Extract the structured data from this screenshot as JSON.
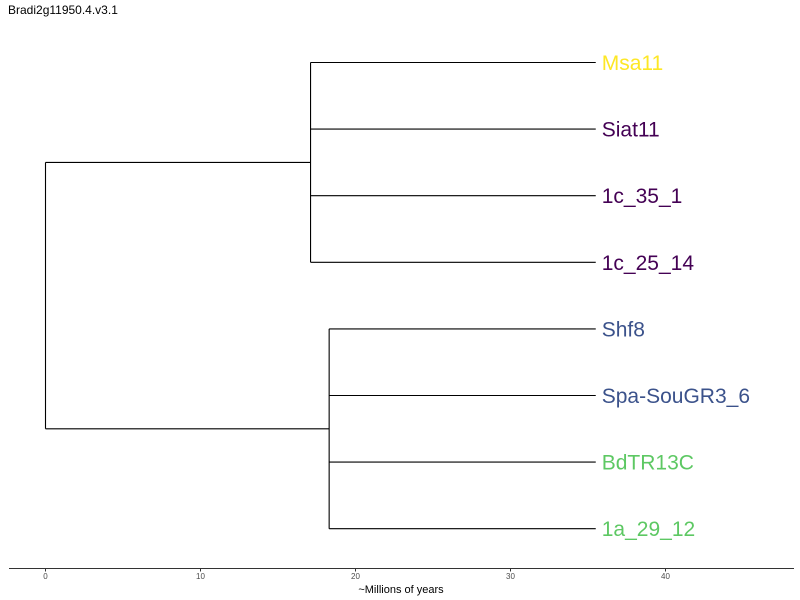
{
  "title": "Bradi2g11950.4.v3.1",
  "axis": {
    "label": "~Millions of years",
    "ticks": [
      0,
      10,
      20,
      30,
      40
    ],
    "range": [
      -2.3,
      48
    ]
  },
  "tree": {
    "tips": [
      {
        "label": "Msa11",
        "color": "#FDE725",
        "depth": 35.5
      },
      {
        "label": "Siat11",
        "color": "#440154",
        "depth": 35.5
      },
      {
        "label": "1c_35_1",
        "color": "#440154",
        "depth": 35.5
      },
      {
        "label": "1c_25_14",
        "color": "#440154",
        "depth": 35.5
      },
      {
        "label": "Shf8",
        "color": "#3B528B",
        "depth": 35.5
      },
      {
        "label": "Spa-SouGR3_6",
        "color": "#3B528B",
        "depth": 35.5
      },
      {
        "label": "BdTR13C",
        "color": "#5DC863",
        "depth": 35.5
      },
      {
        "label": "1a_29_12",
        "color": "#5DC863",
        "depth": 35.5
      }
    ],
    "root": {
      "depth": 0
    },
    "clades": [
      {
        "depth": 17.1,
        "tips": [
          0,
          1,
          2,
          3
        ]
      },
      {
        "depth": 18.3,
        "tips": [
          4,
          5,
          6,
          7
        ]
      }
    ]
  }
}
